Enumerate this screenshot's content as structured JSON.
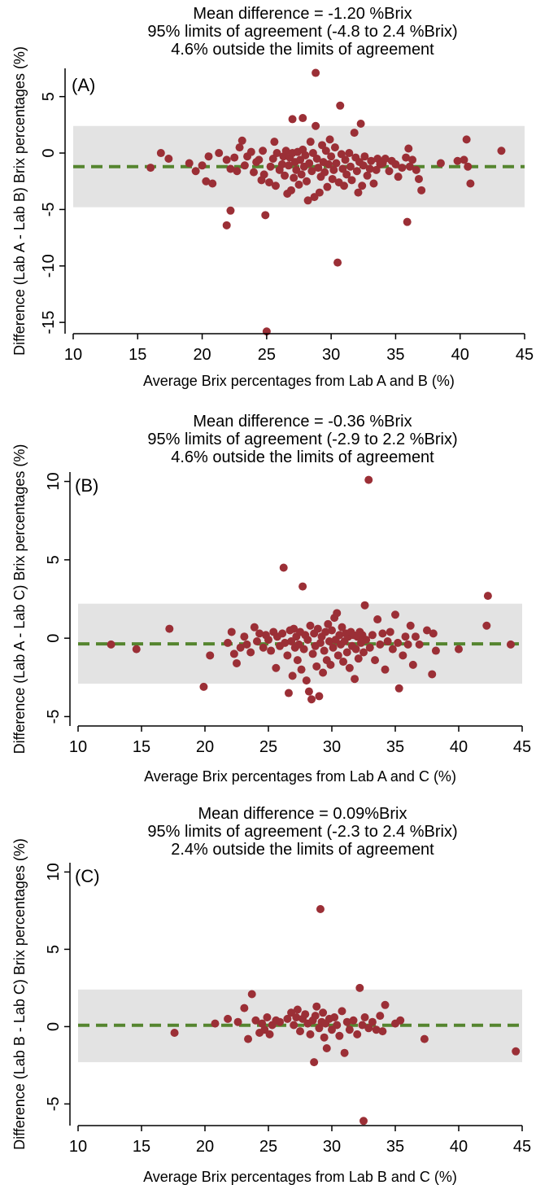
{
  "chart_data": [
    {
      "type": "scatter",
      "panel_label": "(A)",
      "title_lines": [
        "Mean difference = -1.20 %Brix",
        "95% limits of agreement (-4.8 to 2.4 %Brix)",
        "4.6% outside the limits of agreement"
      ],
      "xlabel": "Average Brix percentages from Lab A and B (%)",
      "ylabel": "Difference (Lab A - Lab B) Brix percentages (%)",
      "xlim": [
        10,
        45
      ],
      "ylim": [
        -16,
        7.5
      ],
      "xticks": [
        10,
        15,
        20,
        25,
        30,
        35,
        40,
        45
      ],
      "yticks": [
        5,
        0,
        -5,
        -10,
        -15
      ],
      "band_x": [
        10,
        45
      ],
      "mean_diff": -1.2,
      "limits_of_agreement": [
        -4.8,
        2.4
      ],
      "colors": {
        "point": "#9b2f36",
        "mean_line": "#55852f",
        "band": "#e3e3e3"
      },
      "points": [
        [
          16,
          -1.3
        ],
        [
          16.8,
          0
        ],
        [
          17.4,
          -0.5
        ],
        [
          19,
          -0.9
        ],
        [
          19.5,
          -1.6
        ],
        [
          20,
          -1.1
        ],
        [
          20.3,
          -2.5
        ],
        [
          20.5,
          -0.3
        ],
        [
          20.8,
          -2.7
        ],
        [
          21.3,
          0
        ],
        [
          21.9,
          -0.6
        ],
        [
          21.9,
          -6.4
        ],
        [
          22.2,
          -5.1
        ],
        [
          22.2,
          -1.4
        ],
        [
          22.5,
          -0.4
        ],
        [
          22.7,
          -1.6
        ],
        [
          22.9,
          0.5
        ],
        [
          23.1,
          1.1
        ],
        [
          23.3,
          -1.1
        ],
        [
          23.5,
          -0.3
        ],
        [
          23.8,
          0.1
        ],
        [
          24,
          -1.7
        ],
        [
          24.2,
          -0.8
        ],
        [
          24.4,
          -0.6
        ],
        [
          24.6,
          -2.4
        ],
        [
          24.7,
          0.2
        ],
        [
          24.8,
          -1.9
        ],
        [
          24.9,
          -5.5
        ],
        [
          25,
          -15.8
        ],
        [
          25.2,
          -2.6
        ],
        [
          25.3,
          -1.2
        ],
        [
          25.5,
          -0.5
        ],
        [
          25.6,
          1
        ],
        [
          25.7,
          -2.9
        ],
        [
          25.8,
          0
        ],
        [
          26,
          -1.5
        ],
        [
          26.2,
          -1
        ],
        [
          26.3,
          -0.3
        ],
        [
          26.4,
          -2
        ],
        [
          26.5,
          0.2
        ],
        [
          26.6,
          -3.6
        ],
        [
          26.7,
          -1.1
        ],
        [
          26.8,
          -0.4
        ],
        [
          26.9,
          -3.3
        ],
        [
          27,
          3
        ],
        [
          27,
          0
        ],
        [
          27.1,
          -2.2
        ],
        [
          27.2,
          -0.8
        ],
        [
          27.3,
          -1.5
        ],
        [
          27.4,
          0.1
        ],
        [
          27.5,
          -2.8
        ],
        [
          27.6,
          -0.6
        ],
        [
          27.7,
          -1.9
        ],
        [
          27.8,
          3.1
        ],
        [
          27.8,
          0.3
        ],
        [
          27.9,
          -1.2
        ],
        [
          28,
          -0.2
        ],
        [
          28.1,
          -2.5
        ],
        [
          28.2,
          -4.2
        ],
        [
          28.3,
          -0.9
        ],
        [
          28.4,
          1
        ],
        [
          28.5,
          -1.6
        ],
        [
          28.6,
          0
        ],
        [
          28.7,
          -3.9
        ],
        [
          28.8,
          2.4
        ],
        [
          28.8,
          7.1
        ],
        [
          28.9,
          -0.5
        ],
        [
          29,
          -1.3
        ],
        [
          29.1,
          -3.5
        ],
        [
          29.2,
          -2.1
        ],
        [
          29.3,
          0.7
        ],
        [
          29.4,
          -0.8
        ],
        [
          29.5,
          -1.7
        ],
        [
          29.6,
          0.2
        ],
        [
          29.7,
          -3
        ],
        [
          29.8,
          -1
        ],
        [
          29.9,
          1.2
        ],
        [
          30,
          -0.3
        ],
        [
          30.1,
          -2.3
        ],
        [
          30.2,
          -1.5
        ],
        [
          30.3,
          0.5
        ],
        [
          30.4,
          -0.9
        ],
        [
          30.5,
          -9.7
        ],
        [
          30.6,
          -2.6
        ],
        [
          30.7,
          4.2
        ],
        [
          30.8,
          -0.1
        ],
        [
          30.9,
          -1.4
        ],
        [
          31,
          -2.9
        ],
        [
          31.1,
          -0.6
        ],
        [
          31.2,
          -1.9
        ],
        [
          31.4,
          0
        ],
        [
          31.5,
          -1.2
        ],
        [
          31.6,
          -2.4
        ],
        [
          31.8,
          1.8
        ],
        [
          31.9,
          -0.4
        ],
        [
          32,
          -1.6
        ],
        [
          32.1,
          -3.5
        ],
        [
          32.2,
          -0.8
        ],
        [
          32.3,
          2.6
        ],
        [
          32.4,
          -2.9
        ],
        [
          32.5,
          -1.1
        ],
        [
          32.6,
          -0.3
        ],
        [
          32.8,
          -2
        ],
        [
          33,
          -1.4
        ],
        [
          33.1,
          -0.7
        ],
        [
          33.3,
          -2.7
        ],
        [
          33.5,
          -1.5
        ],
        [
          33.6,
          -0.5
        ],
        [
          33.8,
          -1
        ],
        [
          34,
          -0.9
        ],
        [
          34.2,
          -0.5
        ],
        [
          34.5,
          -1.6
        ],
        [
          34.7,
          -0.7
        ],
        [
          35,
          -1
        ],
        [
          35.2,
          -2.1
        ],
        [
          35.5,
          -1.3
        ],
        [
          35.8,
          -0.4
        ],
        [
          35.9,
          -6.1
        ],
        [
          36,
          0.4
        ],
        [
          36.1,
          -1.2
        ],
        [
          36.3,
          -0.6
        ],
        [
          36.6,
          -1.5
        ],
        [
          36.8,
          -2.3
        ],
        [
          37,
          -3.3
        ],
        [
          38.5,
          -0.9
        ],
        [
          39.8,
          -0.7
        ],
        [
          40.3,
          -0.6
        ],
        [
          40.5,
          1.2
        ],
        [
          40.6,
          -1.2
        ],
        [
          40.8,
          -2.7
        ],
        [
          43.2,
          0.2
        ]
      ]
    },
    {
      "type": "scatter",
      "panel_label": "(B)",
      "title_lines": [
        "Mean difference = -0.36 %Brix",
        "95% limits of agreement (-2.9 to 2.2 %Brix)",
        "4.6% outside the limits of agreement"
      ],
      "xlabel": "Average Brix percentages from Lab A and C (%)",
      "ylabel": "Difference (Lab A - Lab C) Brix percentages (%)",
      "xlim": [
        10,
        45
      ],
      "ylim": [
        -5.6,
        10.6
      ],
      "xticks": [
        10,
        15,
        20,
        25,
        30,
        35,
        40,
        45
      ],
      "yticks": [
        10,
        5,
        0,
        -5
      ],
      "band_x": [
        10,
        45
      ],
      "mean_diff": -0.36,
      "limits_of_agreement": [
        -2.9,
        2.2
      ],
      "colors": {
        "point": "#9b2f36",
        "mean_line": "#55852f",
        "band": "#e3e3e3"
      },
      "points": [
        [
          12.6,
          -0.4
        ],
        [
          14.6,
          -0.7
        ],
        [
          17.2,
          0.6
        ],
        [
          19.9,
          -3.1
        ],
        [
          20.4,
          -1.1
        ],
        [
          21.8,
          -0.3
        ],
        [
          22.1,
          0.4
        ],
        [
          22.3,
          -1
        ],
        [
          22.5,
          -1.6
        ],
        [
          22.8,
          -0.6
        ],
        [
          23.1,
          0.1
        ],
        [
          23.3,
          -0.4
        ],
        [
          23.6,
          -0.9
        ],
        [
          23.9,
          0.7
        ],
        [
          24.1,
          -0.2
        ],
        [
          24.3,
          0.3
        ],
        [
          24.6,
          -0.6
        ],
        [
          24.8,
          0.2
        ],
        [
          25,
          -0.1
        ],
        [
          25.2,
          -0.8
        ],
        [
          25.4,
          0.4
        ],
        [
          25.6,
          -1.9
        ],
        [
          25.7,
          0.1
        ],
        [
          25.9,
          -0.5
        ],
        [
          26.1,
          0.3
        ],
        [
          26.2,
          4.5
        ],
        [
          26.3,
          -0.3
        ],
        [
          26.5,
          -1.1
        ],
        [
          26.6,
          -3.5
        ],
        [
          26.7,
          0.5
        ],
        [
          26.8,
          -0.2
        ],
        [
          26.9,
          -2.4
        ],
        [
          27,
          0.6
        ],
        [
          27.1,
          -0.6
        ],
        [
          27.2,
          0.1
        ],
        [
          27.3,
          -1.4
        ],
        [
          27.4,
          -0.4
        ],
        [
          27.5,
          0.4
        ],
        [
          27.6,
          -2
        ],
        [
          27.7,
          3.3
        ],
        [
          27.8,
          -0.7
        ],
        [
          27.9,
          0.2
        ],
        [
          28,
          -2.7
        ],
        [
          28.1,
          -0.1
        ],
        [
          28.2,
          -3.4
        ],
        [
          28.3,
          0.8
        ],
        [
          28.4,
          -3.9
        ],
        [
          28.5,
          -1
        ],
        [
          28.6,
          0.3
        ],
        [
          28.7,
          -0.5
        ],
        [
          28.8,
          -1.8
        ],
        [
          28.9,
          0.6
        ],
        [
          29,
          -3.7
        ],
        [
          29.1,
          -0.3
        ],
        [
          29.2,
          0.1
        ],
        [
          29.3,
          -2.2
        ],
        [
          29.4,
          -0.8
        ],
        [
          29.5,
          0.4
        ],
        [
          29.6,
          -1.4
        ],
        [
          29.7,
          0.9
        ],
        [
          29.8,
          -0.2
        ],
        [
          29.9,
          -1.7
        ],
        [
          30,
          0.5
        ],
        [
          30.1,
          -0.6
        ],
        [
          30.2,
          1.3
        ],
        [
          30.3,
          -0.1
        ],
        [
          30.4,
          1.6
        ],
        [
          30.5,
          -1.1
        ],
        [
          30.6,
          0.2
        ],
        [
          30.7,
          -0.4
        ],
        [
          30.8,
          0.7
        ],
        [
          30.9,
          -1.5
        ],
        [
          31,
          -0.2
        ],
        [
          31.1,
          0.3
        ],
        [
          31.2,
          -0.9
        ],
        [
          31.3,
          0.1
        ],
        [
          31.4,
          -1.9
        ],
        [
          31.5,
          0.4
        ],
        [
          31.6,
          -0.5
        ],
        [
          31.7,
          0.2
        ],
        [
          31.8,
          -2.6
        ],
        [
          31.9,
          -0.7
        ],
        [
          32,
          0.1
        ],
        [
          32.1,
          -1.3
        ],
        [
          32.2,
          0.4
        ],
        [
          32.3,
          -0.3
        ],
        [
          32.4,
          0.2
        ],
        [
          32.5,
          -0.9
        ],
        [
          32.6,
          2.1
        ],
        [
          32.7,
          -0.1
        ],
        [
          32.9,
          10.1
        ],
        [
          33,
          -0.6
        ],
        [
          33.2,
          0.2
        ],
        [
          33.4,
          -1.4
        ],
        [
          33.6,
          1.2
        ],
        [
          33.8,
          -0.4
        ],
        [
          34,
          0.3
        ],
        [
          34.2,
          -2
        ],
        [
          34.4,
          -0.2
        ],
        [
          34.6,
          0.4
        ],
        [
          34.8,
          -0.7
        ],
        [
          35,
          1.5
        ],
        [
          35.2,
          -0.3
        ],
        [
          35.3,
          -3.2
        ],
        [
          35.6,
          -1.1
        ],
        [
          35.8,
          0.1
        ],
        [
          36,
          -0.4
        ],
        [
          36.2,
          0.8
        ],
        [
          36.4,
          -1.7
        ],
        [
          36.6,
          0.1
        ],
        [
          36.9,
          -0.4
        ],
        [
          37.5,
          0.5
        ],
        [
          37.9,
          -2.3
        ],
        [
          38,
          0.3
        ],
        [
          38.2,
          -0.8
        ],
        [
          40,
          -0.7
        ],
        [
          42.2,
          0.8
        ],
        [
          42.3,
          2.7
        ],
        [
          44.1,
          -0.4
        ]
      ]
    },
    {
      "type": "scatter",
      "panel_label": "(C)",
      "title_lines": [
        "Mean difference = 0.09%Brix",
        "95% limits of agreement (-2.3 to 2.4 %Brix)",
        "2.4% outside the limits of agreement"
      ],
      "xlabel": "Average Brix percentages from Lab B and C (%)",
      "ylabel": "Difference (Lab B - Lab C) Brix percentages (%)",
      "xlim": [
        10,
        45
      ],
      "ylim": [
        -6.4,
        10.6
      ],
      "xticks": [
        10,
        15,
        20,
        25,
        30,
        35,
        40,
        45
      ],
      "yticks": [
        10,
        5,
        0,
        -5
      ],
      "band_x": [
        10,
        45
      ],
      "mean_diff": 0.09,
      "limits_of_agreement": [
        -2.3,
        2.4
      ],
      "colors": {
        "point": "#9b2f36",
        "mean_line": "#55852f",
        "band": "#e3e3e3"
      },
      "points": [
        [
          17.6,
          -0.4
        ],
        [
          20.8,
          0.2
        ],
        [
          21.8,
          0.5
        ],
        [
          22.6,
          0.3
        ],
        [
          23.1,
          1.2
        ],
        [
          23.4,
          -0.8
        ],
        [
          23.7,
          2.1
        ],
        [
          24,
          0.4
        ],
        [
          24.3,
          -0.4
        ],
        [
          24.5,
          0.2
        ],
        [
          24.7,
          -0.2
        ],
        [
          24.9,
          0.6
        ],
        [
          25.1,
          -0.5
        ],
        [
          25.3,
          0.1
        ],
        [
          25.6,
          0.4
        ],
        [
          25.9,
          0.3
        ],
        [
          26.5,
          0.5
        ],
        [
          26.8,
          0.9
        ],
        [
          27,
          0.1
        ],
        [
          27.2,
          0.6
        ],
        [
          27.3,
          1.1
        ],
        [
          27.5,
          -0.3
        ],
        [
          27.7,
          0.5
        ],
        [
          27.9,
          0.8
        ],
        [
          28.1,
          0.2
        ],
        [
          28.3,
          -0.5
        ],
        [
          28.5,
          0.4
        ],
        [
          28.6,
          -2.3
        ],
        [
          28.7,
          0.7
        ],
        [
          28.8,
          1.3
        ],
        [
          29,
          -0.1
        ],
        [
          29.1,
          7.6
        ],
        [
          29.2,
          0.3
        ],
        [
          29.3,
          0.9
        ],
        [
          29.4,
          -0.7
        ],
        [
          29.5,
          0.2
        ],
        [
          29.6,
          -1.4
        ],
        [
          29.8,
          0.5
        ],
        [
          30,
          -0.2
        ],
        [
          30.2,
          0.6
        ],
        [
          30.4,
          0.1
        ],
        [
          30.6,
          -0.6
        ],
        [
          30.8,
          1
        ],
        [
          31,
          -1.7
        ],
        [
          31.2,
          0.3
        ],
        [
          31.4,
          -0.2
        ],
        [
          31.7,
          0.4
        ],
        [
          32,
          -0.5
        ],
        [
          32.2,
          2.5
        ],
        [
          32.4,
          0.1
        ],
        [
          32.5,
          -6.1
        ],
        [
          32.6,
          0.6
        ],
        [
          32.9,
          -0.1
        ],
        [
          33.2,
          0.3
        ],
        [
          33.5,
          -0.2
        ],
        [
          33.8,
          0.7
        ],
        [
          34,
          -0.3
        ],
        [
          34.2,
          1.4
        ],
        [
          35,
          0.2
        ],
        [
          35.4,
          0.4
        ],
        [
          37.3,
          -0.8
        ],
        [
          44.5,
          -1.6
        ]
      ]
    }
  ]
}
